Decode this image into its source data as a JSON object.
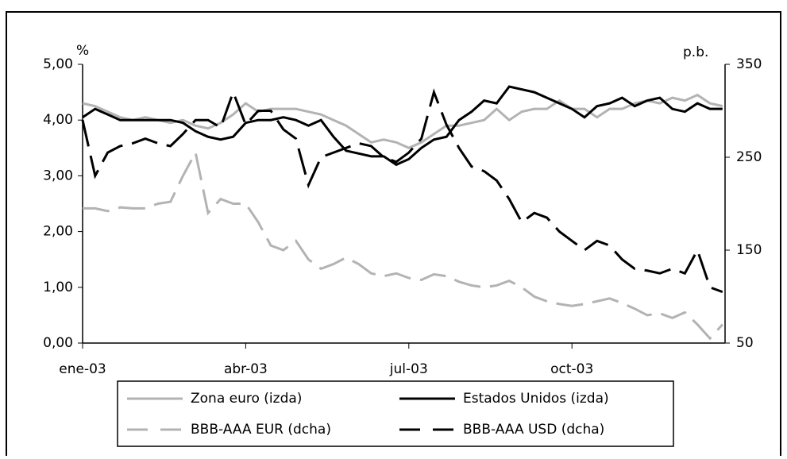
{
  "chart_data": {
    "type": "line",
    "y_label": "%",
    "y2_label": "p.b.",
    "categories": [
      "ene-03",
      null,
      null,
      null,
      null,
      null,
      null,
      null,
      null,
      null,
      null,
      null,
      null,
      "abr-03",
      null,
      null,
      null,
      null,
      null,
      null,
      null,
      null,
      null,
      null,
      null,
      null,
      "jul-03",
      null,
      null,
      null,
      null,
      null,
      null,
      null,
      null,
      null,
      null,
      null,
      null,
      "oct-03",
      null,
      null,
      null,
      null,
      null,
      null,
      null,
      null,
      null,
      null,
      null,
      null
    ],
    "ylim": [
      0,
      5
    ],
    "yticks": [
      {
        "value": 0,
        "label": "0,00"
      },
      {
        "value": 1,
        "label": "1,00"
      },
      {
        "value": 2,
        "label": "2,00"
      },
      {
        "value": 3,
        "label": "3,00"
      },
      {
        "value": 4,
        "label": "4,00"
      },
      {
        "value": 5,
        "label": "5,00"
      }
    ],
    "y2lim": [
      50,
      350
    ],
    "y2ticks": [
      50,
      150,
      250,
      350
    ],
    "series": [
      {
        "name": "Zona euro (izda)",
        "color": "#b3b3b3",
        "dash": false,
        "values": [
          4.3,
          4.25,
          4.15,
          4.05,
          4.0,
          4.05,
          4.0,
          3.95,
          4.0,
          3.9,
          3.85,
          3.95,
          4.1,
          4.3,
          4.15,
          4.2,
          4.2,
          4.2,
          4.15,
          4.1,
          4.0,
          3.9,
          3.75,
          3.6,
          3.65,
          3.6,
          3.5,
          3.6,
          3.75,
          3.9,
          3.9,
          3.95,
          4.0,
          4.2,
          4.0,
          4.15,
          4.2,
          4.2,
          4.35,
          4.2,
          4.2,
          4.05,
          4.2,
          4.2,
          4.3,
          4.35,
          4.3,
          4.4,
          4.35,
          4.45,
          4.3,
          4.25
        ]
      },
      {
        "name": "Estados Unidos (izda)",
        "color": "#000000",
        "dash": false,
        "values": [
          4.05,
          4.2,
          4.1,
          4.0,
          4.0,
          4.0,
          4.0,
          4.0,
          3.95,
          3.8,
          3.7,
          3.65,
          3.7,
          3.95,
          4.0,
          4.0,
          4.05,
          4.0,
          3.9,
          4.0,
          3.7,
          3.45,
          3.4,
          3.35,
          3.35,
          3.2,
          3.3,
          3.5,
          3.65,
          3.7,
          4.0,
          4.15,
          4.35,
          4.3,
          4.6,
          4.55,
          4.5,
          4.4,
          4.3,
          4.2,
          4.05,
          4.25,
          4.3,
          4.4,
          4.25,
          4.35,
          4.4,
          4.2,
          4.15,
          4.3,
          4.2,
          4.2
        ]
      },
      {
        "name": "BBB-AAA EUR (dcha)",
        "color": "#b3b3b3",
        "dash": true,
        "axis": "y2",
        "values": [
          195,
          195,
          192,
          196,
          195,
          195,
          200,
          202,
          230,
          255,
          190,
          205,
          200,
          200,
          180,
          155,
          150,
          160,
          140,
          130,
          135,
          142,
          135,
          125,
          122,
          125,
          120,
          118,
          124,
          122,
          116,
          112,
          110,
          112,
          117,
          110,
          100,
          95,
          92,
          90,
          92,
          95,
          98,
          93,
          87,
          80,
          82,
          77,
          83,
          70,
          55,
          70
        ]
      },
      {
        "name": "BBB-AAA USD (dcha)",
        "color": "#000000",
        "dash": true,
        "axis": "y2",
        "values": [
          290,
          230,
          255,
          262,
          265,
          270,
          265,
          262,
          275,
          290,
          290,
          282,
          320,
          285,
          300,
          300,
          280,
          270,
          220,
          250,
          255,
          260,
          265,
          262,
          250,
          245,
          255,
          270,
          320,
          285,
          260,
          240,
          235,
          225,
          205,
          180,
          190,
          185,
          170,
          160,
          150,
          160,
          155,
          140,
          130,
          128,
          125,
          130,
          125,
          150,
          110,
          105
        ]
      }
    ]
  }
}
